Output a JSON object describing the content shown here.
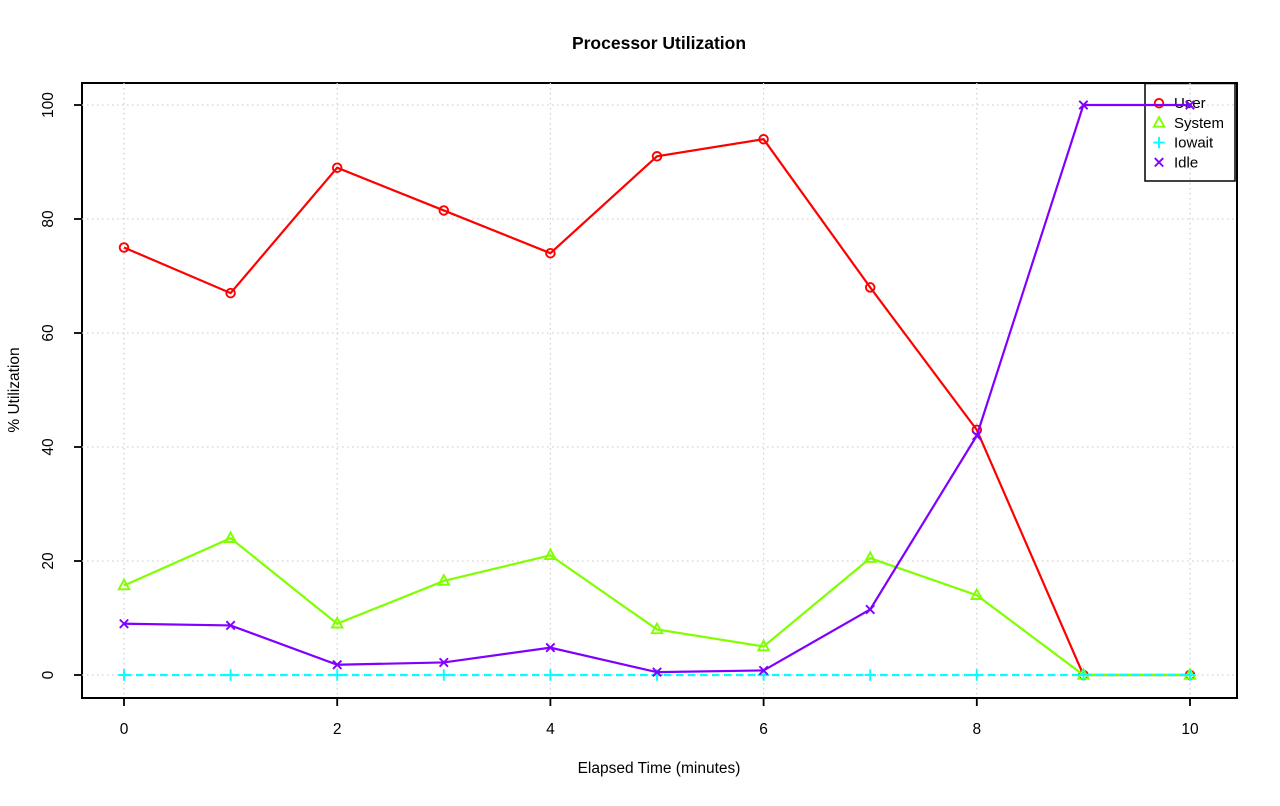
{
  "chart_data": {
    "type": "line",
    "title": "Processor Utilization",
    "xlabel": "Elapsed Time (minutes)",
    "ylabel": "% Utilization",
    "x": [
      0,
      1,
      2,
      3,
      4,
      5,
      6,
      7,
      8,
      9,
      10
    ],
    "xlim": [
      0,
      10
    ],
    "ylim": [
      0,
      100
    ],
    "x_ticks": [
      0,
      2,
      4,
      6,
      8,
      10
    ],
    "y_ticks": [
      0,
      20,
      40,
      60,
      80,
      100
    ],
    "grid": true,
    "grid_style": "dotted",
    "grid_color": "#d3d3d3",
    "legend_position": "top-right",
    "series": [
      {
        "name": "User",
        "color": "#FF0000",
        "marker": "circle",
        "linestyle": "solid",
        "values": [
          75,
          67,
          89,
          81.5,
          74,
          91,
          94,
          68,
          43,
          0,
          0
        ]
      },
      {
        "name": "System",
        "color": "#80FF00",
        "marker": "triangle",
        "linestyle": "solid",
        "values": [
          15.7,
          24,
          9,
          16.5,
          21,
          8,
          5,
          20.5,
          14,
          0,
          0
        ]
      },
      {
        "name": "Iowait",
        "color": "#00FFFF",
        "marker": "plus",
        "linestyle": "dashed",
        "values": [
          0,
          0,
          0,
          0,
          0,
          0,
          0,
          0,
          0,
          0,
          0
        ]
      },
      {
        "name": "Idle",
        "color": "#8000FF",
        "marker": "x",
        "linestyle": "solid",
        "values": [
          9,
          8.7,
          1.8,
          2.2,
          4.8,
          0.5,
          0.8,
          11.5,
          42,
          100,
          100
        ]
      }
    ]
  }
}
